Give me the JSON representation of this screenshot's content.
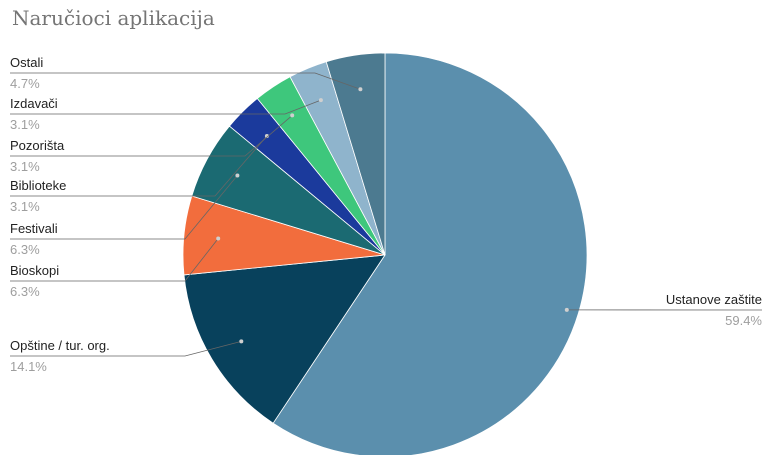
{
  "chart_data": {
    "type": "pie",
    "title": "Naručioci aplikacija",
    "slices": [
      {
        "label": "Ustanove zaštite",
        "pct_label": "59.4%",
        "value": 59.4,
        "color": "#5b8fad"
      },
      {
        "label": "Opštine / tur. org.",
        "pct_label": "14.1%",
        "value": 14.1,
        "color": "#08415c"
      },
      {
        "label": "Bioskopi",
        "pct_label": "6.3%",
        "value": 6.3,
        "color": "#f26d3d"
      },
      {
        "label": "Festivali",
        "pct_label": "6.3%",
        "value": 6.3,
        "color": "#1b6a72"
      },
      {
        "label": "Biblioteke",
        "pct_label": "3.1%",
        "value": 3.1,
        "color": "#1b3a9c"
      },
      {
        "label": "Pozorišta",
        "pct_label": "3.1%",
        "value": 3.1,
        "color": "#3ec77c"
      },
      {
        "label": "Izdavači",
        "pct_label": "3.1%",
        "value": 3.1,
        "color": "#8fb4cc"
      },
      {
        "label": "Ostali",
        "pct_label": "4.7%",
        "value": 4.7,
        "color": "#4c7a90"
      }
    ],
    "legend": "outside-labels"
  }
}
